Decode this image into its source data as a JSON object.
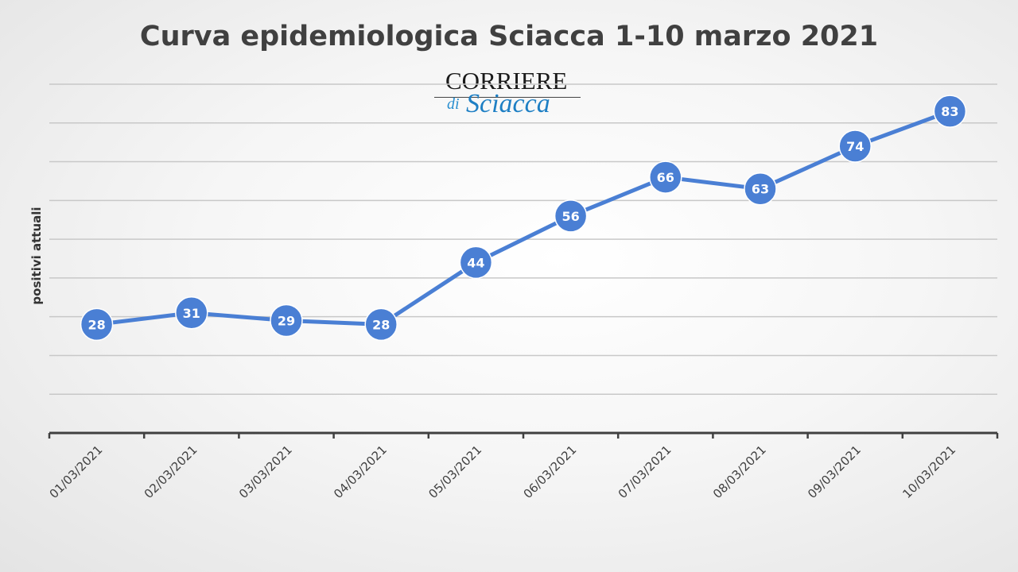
{
  "chart_data": {
    "type": "line",
    "title": "Curva epidemiologica Sciacca 1-10 marzo 2021",
    "xlabel": "",
    "ylabel": "positivi attuali",
    "categories": [
      "01/03/2021",
      "02/03/2021",
      "03/03/2021",
      "04/03/2021",
      "05/03/2021",
      "06/03/2021",
      "07/03/2021",
      "08/03/2021",
      "09/03/2021",
      "10/03/2021"
    ],
    "series": [
      {
        "values": [
          28,
          31,
          29,
          28,
          44,
          56,
          66,
          63,
          74,
          83
        ]
      }
    ],
    "ylim": [
      0,
      90
    ],
    "y_gridlines": [
      10,
      20,
      30,
      40,
      50,
      60,
      70,
      80,
      90
    ],
    "y_tick_labels_shown": false,
    "data_labels": true,
    "grid": true,
    "legend": "none",
    "colors": {
      "line": "#4a7fd4",
      "marker": "#4a7fd4",
      "marker_text": "#ffffff",
      "grid": "#c8c8c8",
      "axis": "#404040"
    }
  },
  "logo": {
    "line1": "CORRIERE",
    "line2_prefix": "di",
    "line2": "Sciacca"
  }
}
